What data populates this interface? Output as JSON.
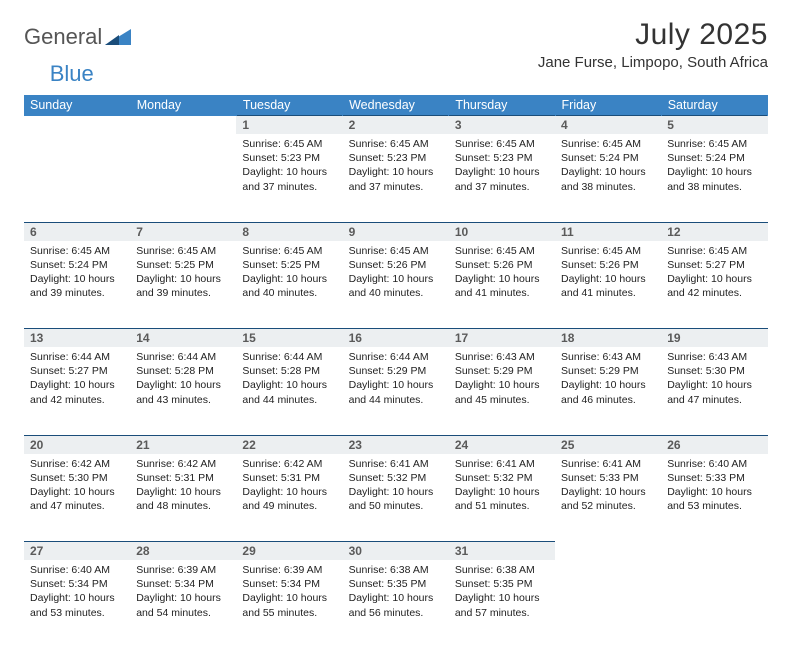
{
  "brand": {
    "word1": "General",
    "word2": "Blue"
  },
  "title": "July 2025",
  "location": "Jane Furse, Limpopo, South Africa",
  "colors": {
    "header_bg": "#3a83c4",
    "header_text": "#ffffff",
    "daynum_bg": "#eceff1",
    "daynum_border": "#1a4d7a",
    "text": "#222222"
  },
  "weekdays": [
    "Sunday",
    "Monday",
    "Tuesday",
    "Wednesday",
    "Thursday",
    "Friday",
    "Saturday"
  ],
  "weeks": [
    [
      null,
      null,
      {
        "n": "1",
        "sunrise": "Sunrise: 6:45 AM",
        "sunset": "Sunset: 5:23 PM",
        "day1": "Daylight: 10 hours",
        "day2": "and 37 minutes."
      },
      {
        "n": "2",
        "sunrise": "Sunrise: 6:45 AM",
        "sunset": "Sunset: 5:23 PM",
        "day1": "Daylight: 10 hours",
        "day2": "and 37 minutes."
      },
      {
        "n": "3",
        "sunrise": "Sunrise: 6:45 AM",
        "sunset": "Sunset: 5:23 PM",
        "day1": "Daylight: 10 hours",
        "day2": "and 37 minutes."
      },
      {
        "n": "4",
        "sunrise": "Sunrise: 6:45 AM",
        "sunset": "Sunset: 5:24 PM",
        "day1": "Daylight: 10 hours",
        "day2": "and 38 minutes."
      },
      {
        "n": "5",
        "sunrise": "Sunrise: 6:45 AM",
        "sunset": "Sunset: 5:24 PM",
        "day1": "Daylight: 10 hours",
        "day2": "and 38 minutes."
      }
    ],
    [
      {
        "n": "6",
        "sunrise": "Sunrise: 6:45 AM",
        "sunset": "Sunset: 5:24 PM",
        "day1": "Daylight: 10 hours",
        "day2": "and 39 minutes."
      },
      {
        "n": "7",
        "sunrise": "Sunrise: 6:45 AM",
        "sunset": "Sunset: 5:25 PM",
        "day1": "Daylight: 10 hours",
        "day2": "and 39 minutes."
      },
      {
        "n": "8",
        "sunrise": "Sunrise: 6:45 AM",
        "sunset": "Sunset: 5:25 PM",
        "day1": "Daylight: 10 hours",
        "day2": "and 40 minutes."
      },
      {
        "n": "9",
        "sunrise": "Sunrise: 6:45 AM",
        "sunset": "Sunset: 5:26 PM",
        "day1": "Daylight: 10 hours",
        "day2": "and 40 minutes."
      },
      {
        "n": "10",
        "sunrise": "Sunrise: 6:45 AM",
        "sunset": "Sunset: 5:26 PM",
        "day1": "Daylight: 10 hours",
        "day2": "and 41 minutes."
      },
      {
        "n": "11",
        "sunrise": "Sunrise: 6:45 AM",
        "sunset": "Sunset: 5:26 PM",
        "day1": "Daylight: 10 hours",
        "day2": "and 41 minutes."
      },
      {
        "n": "12",
        "sunrise": "Sunrise: 6:45 AM",
        "sunset": "Sunset: 5:27 PM",
        "day1": "Daylight: 10 hours",
        "day2": "and 42 minutes."
      }
    ],
    [
      {
        "n": "13",
        "sunrise": "Sunrise: 6:44 AM",
        "sunset": "Sunset: 5:27 PM",
        "day1": "Daylight: 10 hours",
        "day2": "and 42 minutes."
      },
      {
        "n": "14",
        "sunrise": "Sunrise: 6:44 AM",
        "sunset": "Sunset: 5:28 PM",
        "day1": "Daylight: 10 hours",
        "day2": "and 43 minutes."
      },
      {
        "n": "15",
        "sunrise": "Sunrise: 6:44 AM",
        "sunset": "Sunset: 5:28 PM",
        "day1": "Daylight: 10 hours",
        "day2": "and 44 minutes."
      },
      {
        "n": "16",
        "sunrise": "Sunrise: 6:44 AM",
        "sunset": "Sunset: 5:29 PM",
        "day1": "Daylight: 10 hours",
        "day2": "and 44 minutes."
      },
      {
        "n": "17",
        "sunrise": "Sunrise: 6:43 AM",
        "sunset": "Sunset: 5:29 PM",
        "day1": "Daylight: 10 hours",
        "day2": "and 45 minutes."
      },
      {
        "n": "18",
        "sunrise": "Sunrise: 6:43 AM",
        "sunset": "Sunset: 5:29 PM",
        "day1": "Daylight: 10 hours",
        "day2": "and 46 minutes."
      },
      {
        "n": "19",
        "sunrise": "Sunrise: 6:43 AM",
        "sunset": "Sunset: 5:30 PM",
        "day1": "Daylight: 10 hours",
        "day2": "and 47 minutes."
      }
    ],
    [
      {
        "n": "20",
        "sunrise": "Sunrise: 6:42 AM",
        "sunset": "Sunset: 5:30 PM",
        "day1": "Daylight: 10 hours",
        "day2": "and 47 minutes."
      },
      {
        "n": "21",
        "sunrise": "Sunrise: 6:42 AM",
        "sunset": "Sunset: 5:31 PM",
        "day1": "Daylight: 10 hours",
        "day2": "and 48 minutes."
      },
      {
        "n": "22",
        "sunrise": "Sunrise: 6:42 AM",
        "sunset": "Sunset: 5:31 PM",
        "day1": "Daylight: 10 hours",
        "day2": "and 49 minutes."
      },
      {
        "n": "23",
        "sunrise": "Sunrise: 6:41 AM",
        "sunset": "Sunset: 5:32 PM",
        "day1": "Daylight: 10 hours",
        "day2": "and 50 minutes."
      },
      {
        "n": "24",
        "sunrise": "Sunrise: 6:41 AM",
        "sunset": "Sunset: 5:32 PM",
        "day1": "Daylight: 10 hours",
        "day2": "and 51 minutes."
      },
      {
        "n": "25",
        "sunrise": "Sunrise: 6:41 AM",
        "sunset": "Sunset: 5:33 PM",
        "day1": "Daylight: 10 hours",
        "day2": "and 52 minutes."
      },
      {
        "n": "26",
        "sunrise": "Sunrise: 6:40 AM",
        "sunset": "Sunset: 5:33 PM",
        "day1": "Daylight: 10 hours",
        "day2": "and 53 minutes."
      }
    ],
    [
      {
        "n": "27",
        "sunrise": "Sunrise: 6:40 AM",
        "sunset": "Sunset: 5:34 PM",
        "day1": "Daylight: 10 hours",
        "day2": "and 53 minutes."
      },
      {
        "n": "28",
        "sunrise": "Sunrise: 6:39 AM",
        "sunset": "Sunset: 5:34 PM",
        "day1": "Daylight: 10 hours",
        "day2": "and 54 minutes."
      },
      {
        "n": "29",
        "sunrise": "Sunrise: 6:39 AM",
        "sunset": "Sunset: 5:34 PM",
        "day1": "Daylight: 10 hours",
        "day2": "and 55 minutes."
      },
      {
        "n": "30",
        "sunrise": "Sunrise: 6:38 AM",
        "sunset": "Sunset: 5:35 PM",
        "day1": "Daylight: 10 hours",
        "day2": "and 56 minutes."
      },
      {
        "n": "31",
        "sunrise": "Sunrise: 6:38 AM",
        "sunset": "Sunset: 5:35 PM",
        "day1": "Daylight: 10 hours",
        "day2": "and 57 minutes."
      },
      null,
      null
    ]
  ]
}
